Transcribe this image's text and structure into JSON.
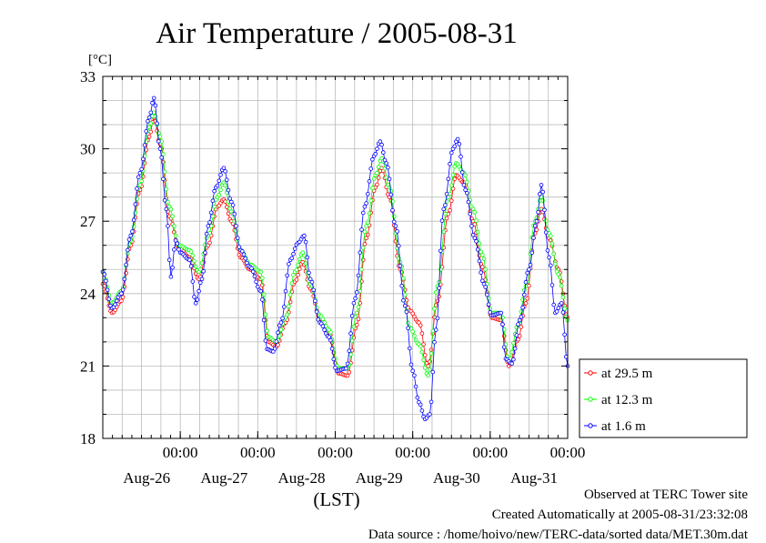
{
  "footer": {
    "line1": "Observed at TERC Tower site",
    "line2": "Created Automatically at 2005-08-31/23:32:08",
    "line3": "Data source : /home/hoivo/new/TERC-data/sorted  data/MET.30m.dat"
  },
  "chart_data": {
    "type": "line",
    "title": "Air Temperature / 2005-08-31",
    "ylabel": "[°C]",
    "xlabel": "(LST)",
    "ylim": [
      18,
      33
    ],
    "yticks": [
      18,
      21,
      24,
      27,
      30,
      33
    ],
    "xlim": [
      0,
      6
    ],
    "x_unit": "days from 2005-08-25 12:00 LST",
    "time_ticks": [
      {
        "x": 1,
        "time": "00:00",
        "date": "Aug-26"
      },
      {
        "x": 2,
        "time": "00:00",
        "date": "Aug-27"
      },
      {
        "x": 3,
        "time": "00:00",
        "date": "Aug-28"
      },
      {
        "x": 4,
        "time": "00:00",
        "date": "Aug-29"
      },
      {
        "x": 5,
        "time": "00:00",
        "date": "Aug-30"
      },
      {
        "x": 6,
        "time": "00:00",
        "date": "Aug-31"
      }
    ],
    "grid": true,
    "legend_position": "right",
    "series": [
      {
        "name": "at 29.5 m",
        "color": "#ff0000",
        "points": [
          [
            0.0,
            24.4
          ],
          [
            0.12,
            23.2
          ],
          [
            0.24,
            23.7
          ],
          [
            0.36,
            26.0
          ],
          [
            0.48,
            28.3
          ],
          [
            0.6,
            30.5
          ],
          [
            0.66,
            31.3
          ],
          [
            0.74,
            30.2
          ],
          [
            0.86,
            27.2
          ],
          [
            0.98,
            25.9
          ],
          [
            1.12,
            25.5
          ],
          [
            1.24,
            24.6
          ],
          [
            1.36,
            26.0
          ],
          [
            1.48,
            27.6
          ],
          [
            1.56,
            27.9
          ],
          [
            1.66,
            27.0
          ],
          [
            1.78,
            25.5
          ],
          [
            1.9,
            25.0
          ],
          [
            2.04,
            24.6
          ],
          [
            2.14,
            22.0
          ],
          [
            2.24,
            21.8
          ],
          [
            2.36,
            22.8
          ],
          [
            2.48,
            24.5
          ],
          [
            2.58,
            25.3
          ],
          [
            2.68,
            24.2
          ],
          [
            2.8,
            23.0
          ],
          [
            2.92,
            22.4
          ],
          [
            3.04,
            20.7
          ],
          [
            3.16,
            20.6
          ],
          [
            3.28,
            22.7
          ],
          [
            3.4,
            26.3
          ],
          [
            3.52,
            28.4
          ],
          [
            3.6,
            29.2
          ],
          [
            3.7,
            28.0
          ],
          [
            3.84,
            25.0
          ],
          [
            3.96,
            23.3
          ],
          [
            4.08,
            22.8
          ],
          [
            4.2,
            21.0
          ],
          [
            4.32,
            23.7
          ],
          [
            4.46,
            27.3
          ],
          [
            4.56,
            28.9
          ],
          [
            4.66,
            28.6
          ],
          [
            4.78,
            27.0
          ],
          [
            4.9,
            25.1
          ],
          [
            5.02,
            23.0
          ],
          [
            5.14,
            22.9
          ],
          [
            5.24,
            21.0
          ],
          [
            5.36,
            22.1
          ],
          [
            5.46,
            23.6
          ],
          [
            5.58,
            26.5
          ],
          [
            5.66,
            27.5
          ],
          [
            5.76,
            26.3
          ],
          [
            5.88,
            25.0
          ],
          [
            6.0,
            23.0
          ]
        ]
      },
      {
        "name": "at 12.3 m",
        "color": "#00ff00",
        "points": [
          [
            0.0,
            24.9
          ],
          [
            0.12,
            23.6
          ],
          [
            0.24,
            24.1
          ],
          [
            0.36,
            26.2
          ],
          [
            0.48,
            28.5
          ],
          [
            0.6,
            30.9
          ],
          [
            0.66,
            31.5
          ],
          [
            0.74,
            30.5
          ],
          [
            0.86,
            27.6
          ],
          [
            0.98,
            26.0
          ],
          [
            1.12,
            25.8
          ],
          [
            1.24,
            24.9
          ],
          [
            1.36,
            26.4
          ],
          [
            1.48,
            28.0
          ],
          [
            1.56,
            28.6
          ],
          [
            1.66,
            27.4
          ],
          [
            1.78,
            25.8
          ],
          [
            1.9,
            25.2
          ],
          [
            2.04,
            24.9
          ],
          [
            2.14,
            22.2
          ],
          [
            2.24,
            22.0
          ],
          [
            2.36,
            23.0
          ],
          [
            2.48,
            24.9
          ],
          [
            2.58,
            25.7
          ],
          [
            2.68,
            24.4
          ],
          [
            2.8,
            23.1
          ],
          [
            2.92,
            22.5
          ],
          [
            3.04,
            20.9
          ],
          [
            3.16,
            20.9
          ],
          [
            3.28,
            23.2
          ],
          [
            3.4,
            26.8
          ],
          [
            3.52,
            28.9
          ],
          [
            3.6,
            29.6
          ],
          [
            3.7,
            28.4
          ],
          [
            3.84,
            25.3
          ],
          [
            3.96,
            22.6
          ],
          [
            4.08,
            21.9
          ],
          [
            4.2,
            20.6
          ],
          [
            4.32,
            24.3
          ],
          [
            4.46,
            28.0
          ],
          [
            4.56,
            29.4
          ],
          [
            4.66,
            29.0
          ],
          [
            4.78,
            27.5
          ],
          [
            4.9,
            25.6
          ],
          [
            5.02,
            23.2
          ],
          [
            5.14,
            23.2
          ],
          [
            5.24,
            21.2
          ],
          [
            5.36,
            22.7
          ],
          [
            5.46,
            24.3
          ],
          [
            5.58,
            27.0
          ],
          [
            5.66,
            28.0
          ],
          [
            5.76,
            26.5
          ],
          [
            5.88,
            24.8
          ],
          [
            6.0,
            22.9
          ]
        ]
      },
      {
        "name": "at 1.6 m",
        "color": "#0000ff",
        "points": [
          [
            0.0,
            24.9
          ],
          [
            0.12,
            23.4
          ],
          [
            0.24,
            24.0
          ],
          [
            0.36,
            26.4
          ],
          [
            0.48,
            29.0
          ],
          [
            0.6,
            31.3
          ],
          [
            0.66,
            32.1
          ],
          [
            0.74,
            30.0
          ],
          [
            0.82,
            27.5
          ],
          [
            0.88,
            24.7
          ],
          [
            0.94,
            26.2
          ],
          [
            1.0,
            25.7
          ],
          [
            1.12,
            25.4
          ],
          [
            1.2,
            23.6
          ],
          [
            1.28,
            24.6
          ],
          [
            1.36,
            26.8
          ],
          [
            1.46,
            28.4
          ],
          [
            1.56,
            29.2
          ],
          [
            1.66,
            27.8
          ],
          [
            1.78,
            25.8
          ],
          [
            1.9,
            25.1
          ],
          [
            2.04,
            24.1
          ],
          [
            2.12,
            21.7
          ],
          [
            2.2,
            21.6
          ],
          [
            2.3,
            22.8
          ],
          [
            2.42,
            25.4
          ],
          [
            2.52,
            26.1
          ],
          [
            2.6,
            26.4
          ],
          [
            2.68,
            24.6
          ],
          [
            2.8,
            22.8
          ],
          [
            2.92,
            22.2
          ],
          [
            3.02,
            20.8
          ],
          [
            3.14,
            20.9
          ],
          [
            3.26,
            23.8
          ],
          [
            3.38,
            27.6
          ],
          [
            3.5,
            29.7
          ],
          [
            3.58,
            30.3
          ],
          [
            3.66,
            29.4
          ],
          [
            3.78,
            26.8
          ],
          [
            3.9,
            23.5
          ],
          [
            4.0,
            20.8
          ],
          [
            4.08,
            19.5
          ],
          [
            4.16,
            18.8
          ],
          [
            4.22,
            19.0
          ],
          [
            4.3,
            22.5
          ],
          [
            4.4,
            27.5
          ],
          [
            4.52,
            30.0
          ],
          [
            4.58,
            30.4
          ],
          [
            4.68,
            28.3
          ],
          [
            4.8,
            26.3
          ],
          [
            4.92,
            24.4
          ],
          [
            5.02,
            23.1
          ],
          [
            5.14,
            23.2
          ],
          [
            5.2,
            21.3
          ],
          [
            5.28,
            21.1
          ],
          [
            5.38,
            22.9
          ],
          [
            5.5,
            25.0
          ],
          [
            5.6,
            27.0
          ],
          [
            5.66,
            28.5
          ],
          [
            5.76,
            25.5
          ],
          [
            5.84,
            23.2
          ],
          [
            5.92,
            23.6
          ],
          [
            6.0,
            21.0
          ]
        ]
      }
    ]
  }
}
